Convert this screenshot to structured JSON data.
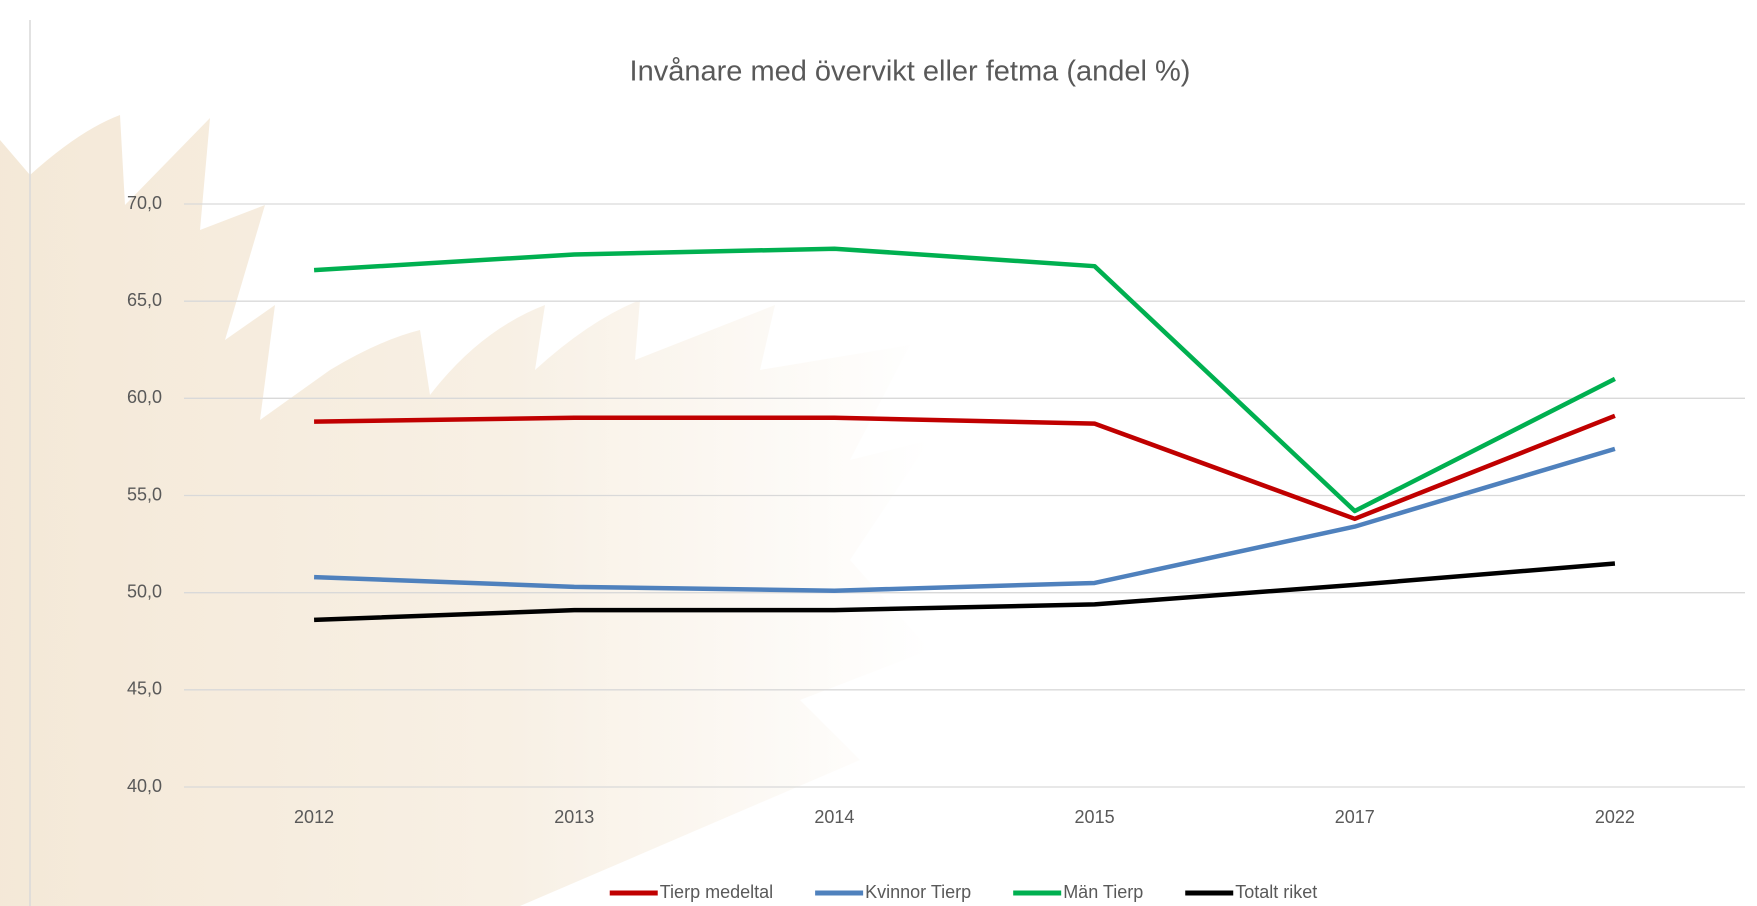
{
  "chart_data": {
    "type": "line",
    "title": "Invånare med övervikt eller fetma (andel %)",
    "categories": [
      "2012",
      "2013",
      "2014",
      "2015",
      "2017",
      "2022"
    ],
    "series": [
      {
        "name": "Tierp medeltal",
        "color": "#c00000",
        "values": [
          58.8,
          59.0,
          59.0,
          58.7,
          53.8,
          59.1
        ]
      },
      {
        "name": "Kvinnor Tierp",
        "color": "#4f81bd",
        "values": [
          50.8,
          50.3,
          50.1,
          50.5,
          53.4,
          57.4
        ]
      },
      {
        "name": "Män Tierp",
        "color": "#00b050",
        "values": [
          66.6,
          67.4,
          67.7,
          66.8,
          54.2,
          61.0
        ]
      },
      {
        "name": "Totalt riket",
        "color": "#000000",
        "values": [
          48.6,
          49.1,
          49.1,
          49.4,
          50.4,
          51.5
        ]
      }
    ],
    "ylim": [
      40,
      70
    ],
    "yticks": [
      {
        "value": 40,
        "label": "40,0"
      },
      {
        "value": 45,
        "label": "45,0"
      },
      {
        "value": 50,
        "label": "50,0"
      },
      {
        "value": 55,
        "label": "55,0"
      },
      {
        "value": 60,
        "label": "60,0"
      },
      {
        "value": 65,
        "label": "65,0"
      },
      {
        "value": 70,
        "label": "70,0"
      }
    ],
    "grid": true,
    "legend": "bottom"
  }
}
